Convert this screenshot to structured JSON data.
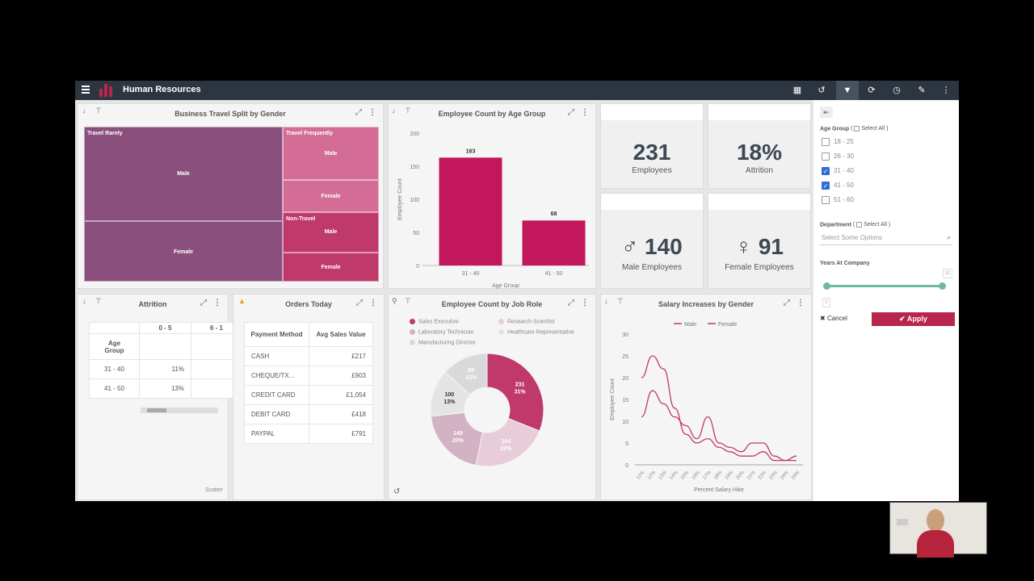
{
  "topbar": {
    "title": "Human Resources",
    "icons": [
      "menu-icon",
      "layout-icon",
      "history-icon",
      "filter-icon",
      "refresh-icon",
      "clock-icon",
      "wrench-icon",
      "more-icon"
    ]
  },
  "colors": {
    "accent": "#c2185b",
    "treemap_dark": "#8a4f7d",
    "treemap_mid": "#c0396b",
    "treemap_light": "#d36d96",
    "apply": "#b8264e"
  },
  "treemap": {
    "title": "Business Travel Split by Gender",
    "groups": [
      {
        "label": "Travel Rarely",
        "cells": [
          "Male",
          "Female"
        ]
      },
      {
        "label": "Travel Frequently",
        "cells": [
          "Male",
          "Female"
        ]
      },
      {
        "label": "Non-Travel",
        "cells": [
          "Male",
          "Female"
        ]
      }
    ]
  },
  "age_chart": {
    "title": "Employee Count by Age Group",
    "chart_data": {
      "type": "bar",
      "categories": [
        "31 - 40",
        "41 - 50"
      ],
      "values": [
        163,
        68
      ],
      "xlabel": "Age Group",
      "ylabel": "Employee Count",
      "ylim": [
        0,
        200
      ],
      "yticks": [
        "200",
        "150",
        "100",
        "50",
        "0"
      ]
    }
  },
  "kpis": {
    "employees": {
      "value": "231",
      "label": "Employees"
    },
    "attrition": {
      "value": "18%",
      "label": "Attrition"
    },
    "male": {
      "value": "140",
      "label": "Male Employees"
    },
    "female": {
      "value": "91",
      "label": "Female Employees"
    }
  },
  "attrition": {
    "title": "Attrition",
    "col_headers": [
      "0 - 5",
      "6 - 1"
    ],
    "row_header": "Age Group",
    "rows": [
      {
        "label": "31 - 40",
        "v1": "11%"
      },
      {
        "label": "41 - 50",
        "v1": "13%"
      }
    ],
    "footer": "Scatter"
  },
  "orders": {
    "title": "Orders Today",
    "headers": [
      "Payment Method",
      "Avg Sales Value"
    ],
    "rows": [
      {
        "method": "CASH",
        "value": "£217"
      },
      {
        "method": "CHEQUE/TX...",
        "value": "£903"
      },
      {
        "method": "CREDIT CARD",
        "value": "£1,054"
      },
      {
        "method": "DEBIT CARD",
        "value": "£418"
      },
      {
        "method": "PAYPAL",
        "value": "£791"
      }
    ]
  },
  "jobrole": {
    "title": "Employee Count by Job Role",
    "legend": [
      "Sales Executive",
      "Research Scientist",
      "Laboratory Technician",
      "Healthcare Representative",
      "Manufacturing Director"
    ],
    "chart_data": {
      "type": "pie",
      "slices": [
        {
          "name": "Sales Executive",
          "value": 231,
          "pct": "31%",
          "color": "#c0396b"
        },
        {
          "name": "Research Scientist",
          "value": 164,
          "pct": "22%",
          "color": "#e8ccd9"
        },
        {
          "name": "Laboratory Technician",
          "value": 149,
          "pct": "20%",
          "color": "#d3b2c4"
        },
        {
          "name": "Healthcare Representative",
          "value": 100,
          "pct": "13%",
          "color": "#e4e4e4"
        },
        {
          "name": "Manufacturing Director",
          "value": 99,
          "pct": "13%",
          "color": "#d9d9d9"
        }
      ]
    }
  },
  "salary": {
    "title": "Salary Increases by Gender",
    "chart_data": {
      "type": "line",
      "x": [
        "11%",
        "12%",
        "13%",
        "14%",
        "15%",
        "16%",
        "17%",
        "18%",
        "19%",
        "20%",
        "21%",
        "22%",
        "23%",
        "24%",
        "25%"
      ],
      "series": [
        {
          "name": "Male",
          "values": [
            20,
            25,
            22,
            13,
            7,
            5,
            6,
            4,
            3,
            2,
            2,
            3,
            1,
            1,
            2
          ],
          "color": "#c0396b"
        },
        {
          "name": "Female",
          "values": [
            11,
            17,
            14,
            11,
            9,
            6,
            11,
            5,
            4,
            3,
            5,
            5,
            2,
            1,
            1
          ],
          "color": "#c0396b"
        }
      ],
      "xlabel": "Percent Salary Hike",
      "ylabel": "Employee Count",
      "ylim": [
        0,
        30
      ],
      "yticks": [
        "30",
        "25",
        "20",
        "15",
        "10",
        "5",
        "0"
      ]
    }
  },
  "filters": {
    "age_label": "Age Group",
    "select_all": "Select All",
    "age_options": [
      {
        "label": "18 - 25",
        "checked": false
      },
      {
        "label": "26 - 30",
        "checked": false
      },
      {
        "label": "31 - 40",
        "checked": true
      },
      {
        "label": "41 - 50",
        "checked": true
      },
      {
        "label": "51 - 60",
        "checked": false
      }
    ],
    "dept_label": "Department",
    "dept_placeholder": "Select Some Options",
    "years_label": "Years At Company",
    "slider_min": "0",
    "slider_max": "32",
    "cancel": "Cancel",
    "apply": "Apply"
  }
}
